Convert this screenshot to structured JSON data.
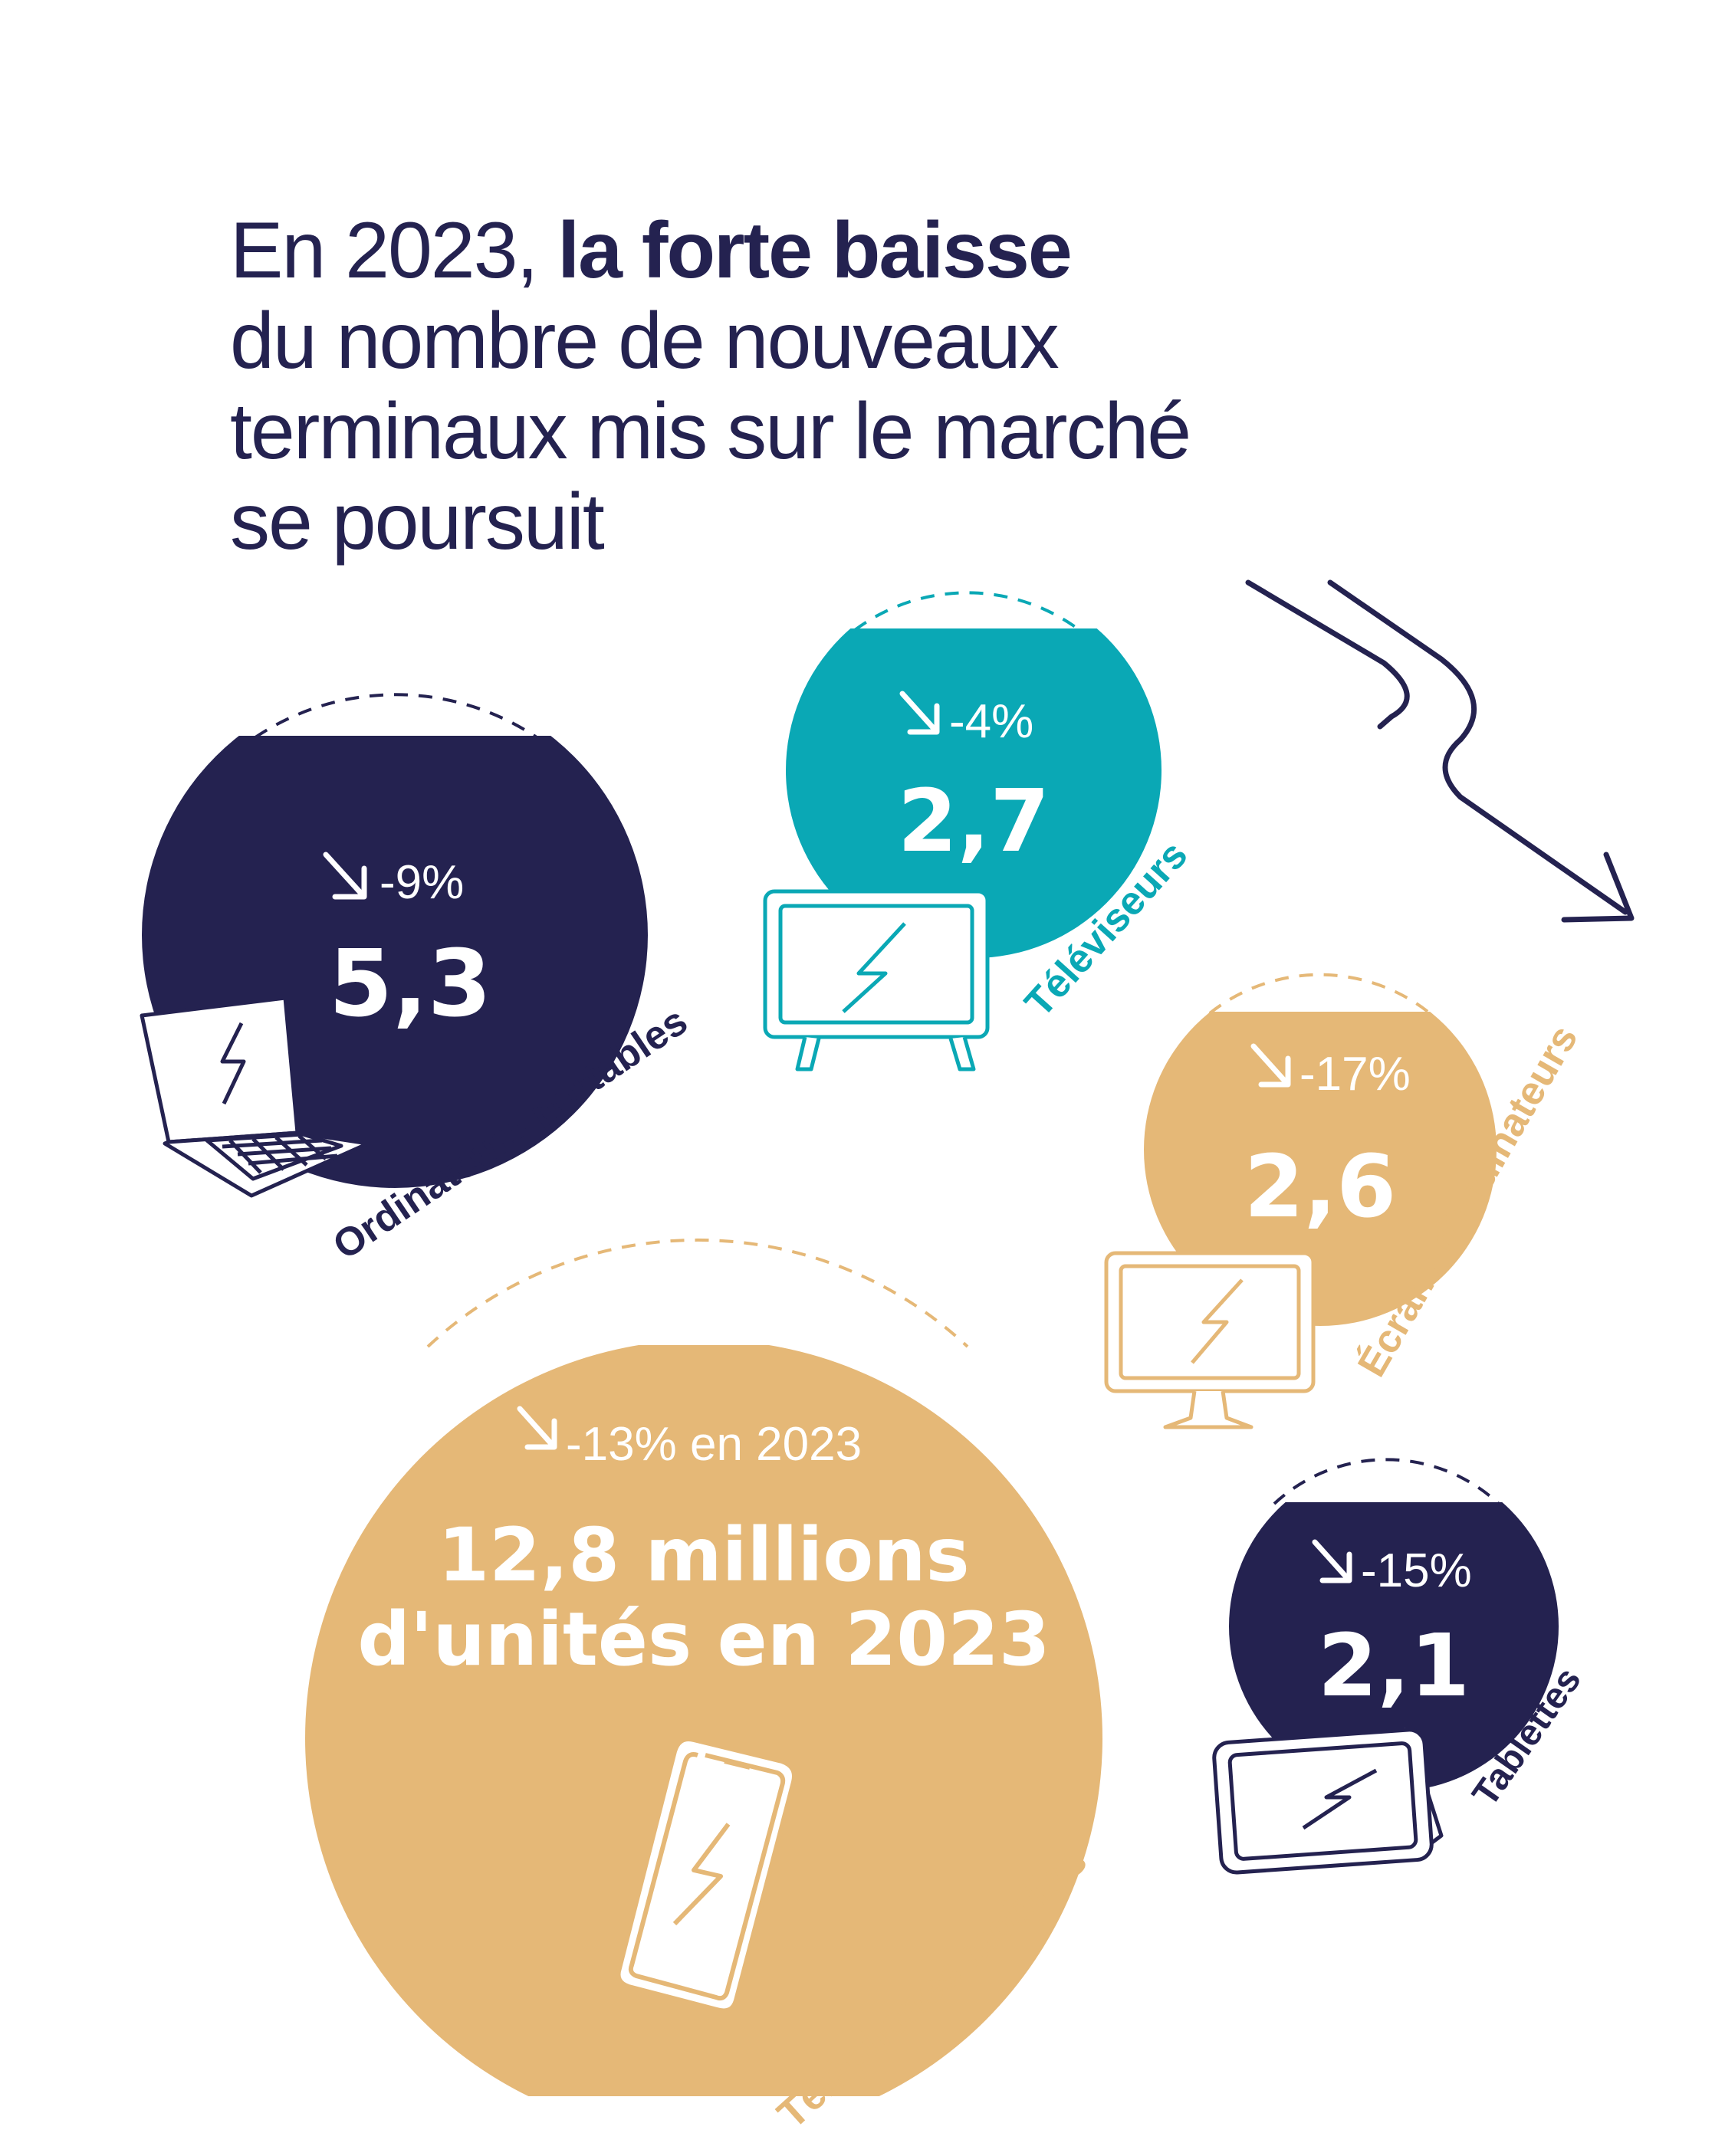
{
  "title": {
    "prefix": "En 2023, ",
    "emphasis": "la forte baisse",
    "line2": "du nombre de nouveaux",
    "line3": "terminaux mis sur le marché",
    "line4": "se poursuit"
  },
  "colors": {
    "navy": "#242250",
    "teal": "#0aa8b5",
    "sand": "#e5b877",
    "white": "#ffffff"
  },
  "chart_data": {
    "type": "bubble",
    "unit": "millions",
    "items": [
      {
        "category": "Ordinateurs portables",
        "value": 5.3,
        "value_label": "5,3",
        "change_label": "-9%",
        "color": "#242250",
        "icon": "laptop-icon"
      },
      {
        "category": "Téléviseurs",
        "value": 2.7,
        "value_label": "2,7",
        "change_label": "-4%",
        "color": "#0aa8b5",
        "icon": "tv-icon"
      },
      {
        "category": "Écrans d'ordinateurs",
        "value": 2.6,
        "value_label": "2,6",
        "change_label": "-17%",
        "color": "#e5b877",
        "icon": "monitor-icon"
      },
      {
        "category": "Téléphones mobiles",
        "value": 12.8,
        "value_label_line1": "12,8 millions",
        "value_label_line2": "d'unités en 2023",
        "change_label": "-13% en 2023",
        "color": "#e5b877",
        "icon": "smartphone-icon"
      },
      {
        "category": "Tablettes",
        "value": 2.1,
        "value_label": "2,1",
        "change_label": "-15%",
        "color": "#242250",
        "icon": "tablet-icon"
      }
    ]
  }
}
